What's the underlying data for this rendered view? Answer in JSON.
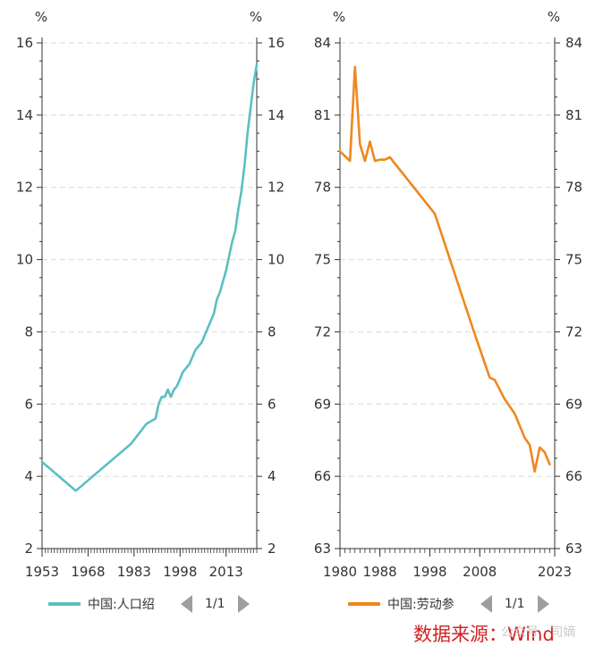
{
  "chart_data": [
    {
      "type": "line",
      "title": "",
      "unit_left": "%",
      "unit_right": "%",
      "series_name": "中国:人口绍",
      "color": "#5bbfbf",
      "xlim": [
        1953,
        2023
      ],
      "ylim": [
        2,
        16
      ],
      "y_ticks": [
        "2",
        "4",
        "6",
        "8",
        "10",
        "12",
        "14",
        "16"
      ],
      "x_ticks": [
        1953,
        1968,
        1983,
        1998,
        2013
      ],
      "x_tick_labels": [
        "1953",
        "1968",
        "1983",
        "1998",
        "2013"
      ],
      "grid": true,
      "points": [
        [
          1953,
          4.4
        ],
        [
          1964,
          3.6
        ],
        [
          1982,
          4.9
        ],
        [
          1987,
          5.45
        ],
        [
          1990,
          5.6
        ],
        [
          1991,
          6.0
        ],
        [
          1992,
          6.2
        ],
        [
          1993,
          6.2
        ],
        [
          1994,
          6.4
        ],
        [
          1995,
          6.2
        ],
        [
          1996,
          6.4
        ],
        [
          1997,
          6.5
        ],
        [
          1998,
          6.7
        ],
        [
          1999,
          6.9
        ],
        [
          2000,
          7.0
        ],
        [
          2001,
          7.1
        ],
        [
          2002,
          7.3
        ],
        [
          2003,
          7.5
        ],
        [
          2004,
          7.6
        ],
        [
          2005,
          7.7
        ],
        [
          2006,
          7.9
        ],
        [
          2007,
          8.1
        ],
        [
          2008,
          8.3
        ],
        [
          2009,
          8.5
        ],
        [
          2010,
          8.9
        ],
        [
          2011,
          9.1
        ],
        [
          2012,
          9.4
        ],
        [
          2013,
          9.7
        ],
        [
          2014,
          10.1
        ],
        [
          2015,
          10.5
        ],
        [
          2016,
          10.8
        ],
        [
          2017,
          11.4
        ],
        [
          2018,
          11.9
        ],
        [
          2019,
          12.6
        ],
        [
          2020,
          13.5
        ],
        [
          2021,
          14.2
        ],
        [
          2022,
          14.9
        ],
        [
          2023,
          15.4
        ]
      ],
      "page": "1/1"
    },
    {
      "type": "line",
      "title": "",
      "unit_left": "%",
      "unit_right": "%",
      "series_name": "中国:劳动参",
      "color": "#f0861e",
      "xlim": [
        1980,
        2023
      ],
      "ylim": [
        63,
        84
      ],
      "y_ticks": [
        "63",
        "66",
        "69",
        "72",
        "75",
        "78",
        "81",
        "84"
      ],
      "x_ticks": [
        1980,
        1988,
        1998,
        2008,
        2023
      ],
      "x_tick_labels": [
        "1980",
        "1988",
        "1998",
        "2008",
        "2023"
      ],
      "grid": true,
      "points": [
        [
          1980,
          79.5
        ],
        [
          1982,
          79.1
        ],
        [
          1983,
          83.0
        ],
        [
          1984,
          79.8
        ],
        [
          1985,
          79.1
        ],
        [
          1986,
          79.9
        ],
        [
          1987,
          79.1
        ],
        [
          1988,
          79.15
        ],
        [
          1989,
          79.15
        ],
        [
          1990,
          79.25
        ],
        [
          1999,
          76.9
        ],
        [
          2003,
          74.4
        ],
        [
          2007,
          71.9
        ],
        [
          2010,
          70.1
        ],
        [
          2011,
          70.0
        ],
        [
          2013,
          69.2
        ],
        [
          2015,
          68.6
        ],
        [
          2017,
          67.6
        ],
        [
          2018,
          67.3
        ],
        [
          2019,
          66.2
        ],
        [
          2020,
          67.2
        ],
        [
          2021,
          67.0
        ],
        [
          2022,
          66.5
        ]
      ],
      "page": "1/1"
    }
  ],
  "source_text": "数据来源：Wind",
  "watermark_text": "公众号 · 司嫡"
}
